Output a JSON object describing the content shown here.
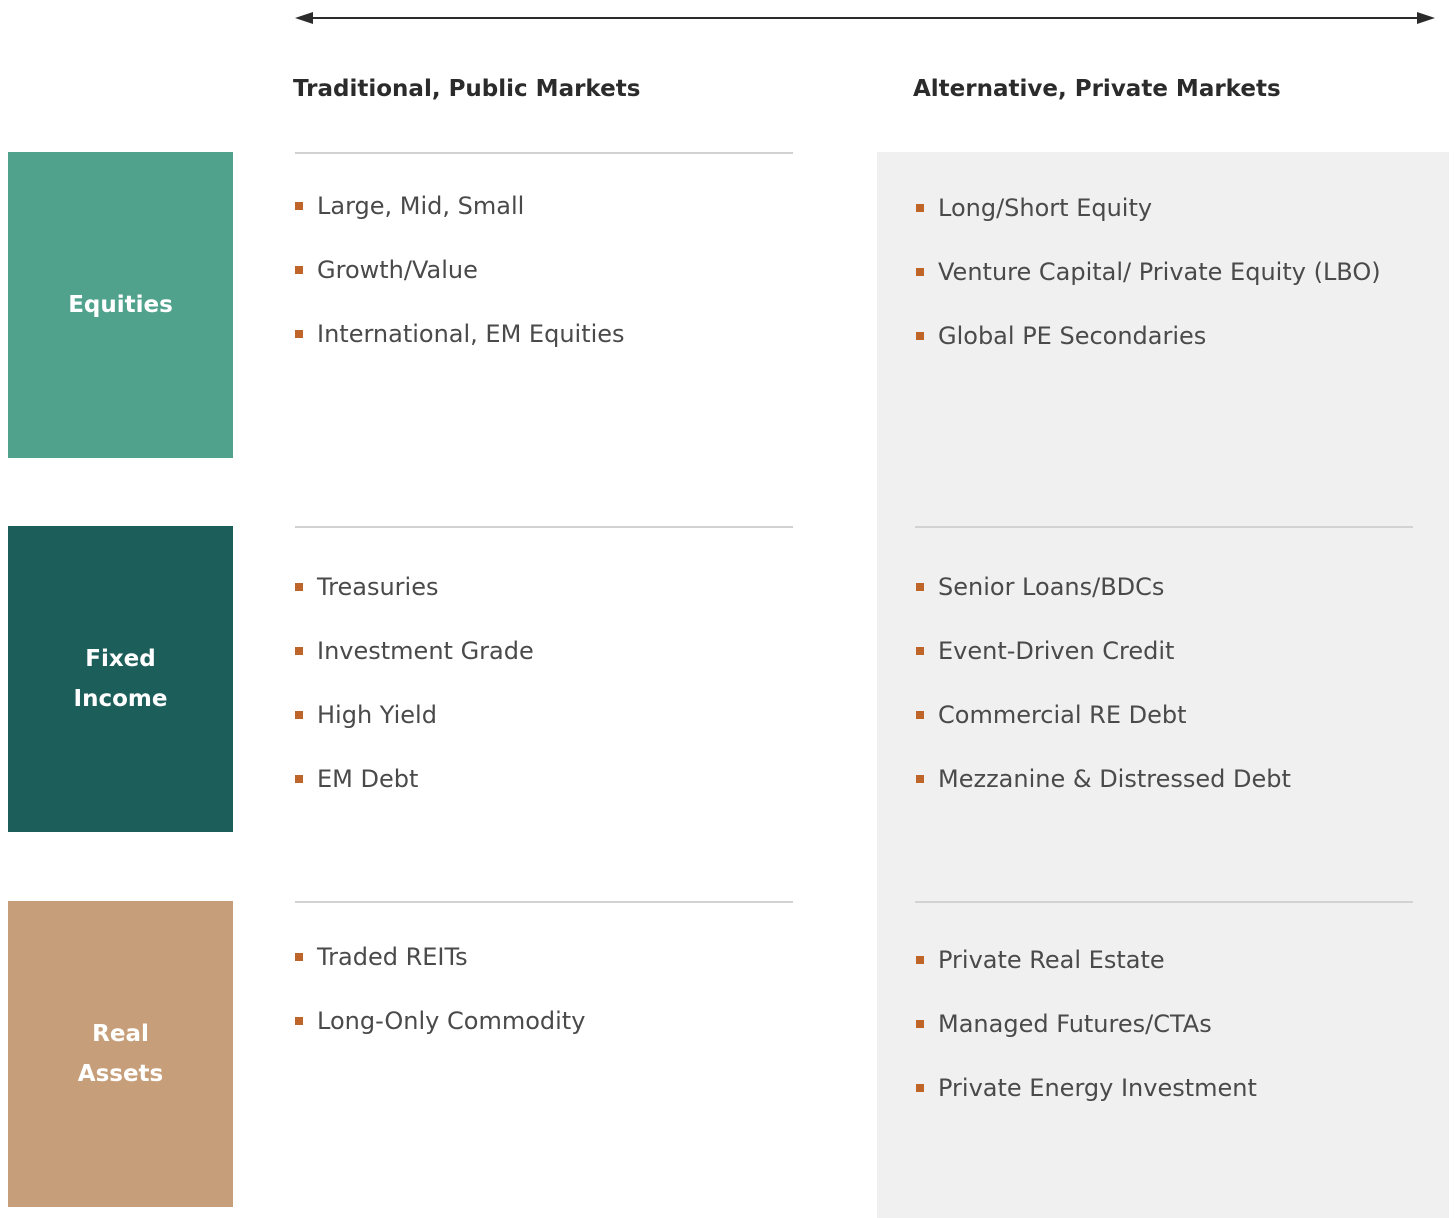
{
  "headers": {
    "traditional": "Traditional, Public Markets",
    "alternative": "Alternative, Private Markets"
  },
  "rows": [
    {
      "label": "Equities",
      "color": "#50a28c",
      "traditional": [
        "Large, Mid, Small",
        "Growth/Value",
        "International, EM Equities"
      ],
      "alternative": [
        "Long/Short Equity",
        "Venture Capital/ Private Equity (LBO)",
        "Global PE Secondaries"
      ]
    },
    {
      "label": "Fixed Income",
      "color": "#1b5e5a",
      "traditional": [
        "Treasuries",
        "Investment Grade",
        "High Yield",
        "EM Debt"
      ],
      "alternative": [
        "Senior Loans/BDCs",
        "Event-Driven Credit",
        "Commercial RE Debt",
        "Mezzanine & Distressed Debt"
      ]
    },
    {
      "label": "Real Assets",
      "color": "#c69f7a",
      "traditional": [
        "Traded REITs",
        "Long-Only Commodity"
      ],
      "alternative": [
        "Private Real Estate",
        "Managed Futures/CTAs",
        "Private Energy Investment"
      ]
    }
  ]
}
